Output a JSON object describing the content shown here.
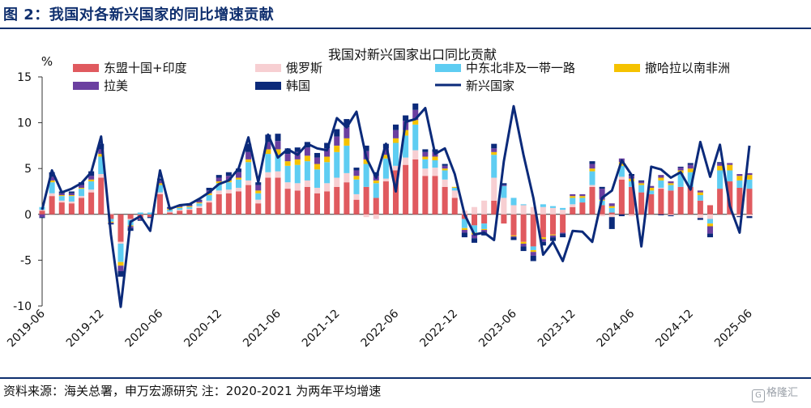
{
  "figure_title": "图 2：我国对各新兴国家的同比增速贡献",
  "source_note": "资料来源：海关总署，申万宏源研究  注：2020-2021 为两年平均增速",
  "watermark": "格隆汇",
  "chart_data": {
    "type": "bar",
    "stacked": true,
    "title": "我国对新兴国家出口同比贡献",
    "ylabel": "%",
    "ylim": [
      -10,
      15
    ],
    "yticks": [
      -10,
      -5,
      0,
      5,
      10,
      15
    ],
    "grid": false,
    "legend_position": "top",
    "x_tick_labels": [
      "2019-06",
      "2019-12",
      "2020-06",
      "2020-12",
      "2021-06",
      "2021-12",
      "2022-06",
      "2022-12",
      "2023-06",
      "2023-12",
      "2024-06",
      "2024-12",
      "2025-06"
    ],
    "categories": [
      "2019-06",
      "2019-07",
      "2019-08",
      "2019-09",
      "2019-10",
      "2019-11",
      "2019-12",
      "2020-01",
      "2020-02",
      "2020-03",
      "2020-04",
      "2020-05",
      "2020-06",
      "2020-07",
      "2020-08",
      "2020-09",
      "2020-10",
      "2020-11",
      "2020-12",
      "2021-01",
      "2021-02",
      "2021-03",
      "2021-04",
      "2021-05",
      "2021-06",
      "2021-07",
      "2021-08",
      "2021-09",
      "2021-10",
      "2021-11",
      "2021-12",
      "2022-01",
      "2022-02",
      "2022-03",
      "2022-04",
      "2022-05",
      "2022-06",
      "2022-07",
      "2022-08",
      "2022-09",
      "2022-10",
      "2022-11",
      "2022-12",
      "2023-01",
      "2023-02",
      "2023-03",
      "2023-04",
      "2023-05",
      "2023-06",
      "2023-07",
      "2023-08",
      "2023-09",
      "2023-10",
      "2023-11",
      "2023-12",
      "2024-01",
      "2024-02",
      "2024-03",
      "2024-04",
      "2024-05",
      "2024-06",
      "2024-07",
      "2024-08",
      "2024-09",
      "2024-10",
      "2024-11",
      "2024-12",
      "2025-01",
      "2025-02",
      "2025-03",
      "2025-04",
      "2025-05",
      "2025-06"
    ],
    "series": [
      {
        "name": "东盟十国+印度",
        "color": "#e05a5f",
        "values": [
          0.4,
          2.0,
          1.3,
          1.2,
          1.8,
          2.4,
          4.0,
          -0.5,
          -3.0,
          -0.5,
          -0.5,
          -0.3,
          2.2,
          0.2,
          0.4,
          0.5,
          0.7,
          1.3,
          2.2,
          2.3,
          2.5,
          3.2,
          1.2,
          4.0,
          4.0,
          2.8,
          2.6,
          3.0,
          2.3,
          2.5,
          3.0,
          3.5,
          1.6,
          3.0,
          1.8,
          3.6,
          4.8,
          5.4,
          6.0,
          4.2,
          4.2,
          3.0,
          1.8,
          -0.5,
          -1.2,
          -1.0,
          1.5,
          -1.0,
          -2.3,
          -3.0,
          -3.5,
          -2.5,
          -2.2,
          -2.0,
          0.8,
          1.3,
          3.0,
          1.0,
          0.2,
          3.8,
          3.0,
          2.4,
          2.2,
          2.8,
          2.6,
          3.0,
          3.0,
          1.5,
          1.0,
          2.8,
          3.6,
          2.9,
          2.8
        ]
      },
      {
        "name": "俄罗斯",
        "color": "#f7cfd2",
        "values": [
          0.1,
          0.3,
          0.2,
          0.2,
          0.2,
          0.3,
          0.4,
          0.1,
          -0.2,
          -0.1,
          0.0,
          0.0,
          0.2,
          0.1,
          0.1,
          0.1,
          0.2,
          0.2,
          0.4,
          0.4,
          0.4,
          0.5,
          0.4,
          0.6,
          0.7,
          0.7,
          0.8,
          0.7,
          0.6,
          0.9,
          1.0,
          1.0,
          0.6,
          -0.3,
          -0.5,
          0.3,
          0.5,
          0.8,
          1.0,
          0.8,
          0.9,
          0.8,
          0.8,
          0.4,
          0.8,
          1.5,
          2.5,
          1.8,
          1.0,
          1.0,
          0.8,
          0.8,
          0.7,
          0.5,
          0.3,
          0.0,
          0.2,
          -0.2,
          -0.3,
          0.3,
          -0.2,
          0.0,
          0.0,
          0.1,
          -0.1,
          0.0,
          0.0,
          -0.4,
          -0.5,
          0.0,
          -0.1,
          -0.2,
          -0.2
        ]
      },
      {
        "name": "中东北非及一带一路",
        "color": "#5ecdf2",
        "values": [
          0.3,
          1.2,
          0.5,
          0.6,
          0.8,
          0.9,
          1.9,
          -0.3,
          -2.0,
          -0.6,
          0.2,
          0.2,
          0.8,
          0.2,
          0.2,
          0.2,
          0.3,
          0.6,
          0.8,
          0.8,
          0.9,
          2.0,
          0.7,
          2.0,
          1.8,
          1.8,
          2.0,
          2.1,
          2.0,
          2.3,
          2.8,
          3.0,
          1.6,
          2.5,
          1.6,
          2.2,
          2.5,
          2.4,
          2.8,
          1.0,
          0.8,
          1.0,
          0.3,
          -1.0,
          -0.8,
          -0.6,
          2.5,
          1.3,
          0.8,
          0.1,
          -0.4,
          0.3,
          0.2,
          0.2,
          0.7,
          0.5,
          1.5,
          0.5,
          0.5,
          1.2,
          0.6,
          0.8,
          0.4,
          0.8,
          0.6,
          1.5,
          1.6,
          0.6,
          -0.5,
          2.0,
          1.2,
          0.8,
          1.0
        ]
      },
      {
        "name": "撤哈拉以南非洲",
        "color": "#f5c200",
        "values": [
          0.0,
          0.2,
          0.1,
          0.1,
          0.1,
          0.2,
          0.3,
          -0.1,
          -0.4,
          -0.1,
          0.0,
          0.0,
          0.2,
          0.1,
          0.1,
          0.1,
          0.1,
          0.2,
          0.2,
          0.2,
          0.2,
          0.3,
          0.3,
          0.5,
          0.6,
          0.5,
          0.6,
          0.6,
          0.6,
          0.6,
          0.7,
          0.8,
          0.4,
          0.5,
          0.3,
          0.4,
          0.5,
          0.6,
          0.5,
          0.3,
          0.4,
          0.2,
          0.1,
          -0.2,
          -0.2,
          -0.1,
          0.3,
          0.0,
          -0.1,
          -0.2,
          -0.2,
          -0.2,
          -0.1,
          0.0,
          0.2,
          0.2,
          0.3,
          0.1,
          0.2,
          0.4,
          0.3,
          0.2,
          0.3,
          0.3,
          0.2,
          0.3,
          0.4,
          0.3,
          -0.3,
          0.5,
          0.6,
          0.5,
          0.5
        ]
      },
      {
        "name": "拉美",
        "color": "#6b3fa0",
        "values": [
          -0.3,
          0.4,
          0.2,
          0.2,
          0.3,
          0.4,
          0.5,
          -0.1,
          -0.6,
          -0.2,
          -0.1,
          0.0,
          0.3,
          0.1,
          0.1,
          0.1,
          0.2,
          0.3,
          0.4,
          0.5,
          0.6,
          0.8,
          0.6,
          0.8,
          0.9,
          0.8,
          0.8,
          0.9,
          0.7,
          0.9,
          1.0,
          1.2,
          0.6,
          0.9,
          0.5,
          0.7,
          0.9,
          1.0,
          1.1,
          0.5,
          0.5,
          0.3,
          0.0,
          -0.3,
          -0.4,
          -0.3,
          0.4,
          0.1,
          -0.1,
          -0.3,
          -0.4,
          -0.3,
          -0.2,
          -0.1,
          0.2,
          0.2,
          0.5,
          1.2,
          0.3,
          0.4,
          0.3,
          0.2,
          0.2,
          0.3,
          0.2,
          0.3,
          0.4,
          0.2,
          -0.8,
          0.3,
          0.2,
          0.2,
          0.2
        ]
      },
      {
        "name": "韩国",
        "color": "#0b2a7a",
        "values": [
          -0.1,
          0.5,
          0.2,
          0.2,
          0.3,
          0.5,
          0.6,
          -0.1,
          -0.6,
          -0.3,
          -0.1,
          -0.1,
          0.2,
          0.1,
          0.1,
          0.1,
          0.1,
          0.3,
          0.3,
          0.4,
          0.4,
          0.9,
          0.3,
          0.8,
          0.8,
          0.6,
          0.5,
          0.6,
          0.5,
          0.6,
          0.8,
          0.9,
          0.3,
          0.6,
          0.4,
          0.5,
          0.6,
          0.6,
          0.7,
          0.3,
          0.3,
          0.2,
          0.0,
          -0.5,
          -0.5,
          -0.3,
          0.5,
          0.2,
          -0.3,
          -0.5,
          -0.6,
          -0.4,
          -0.4,
          -0.4,
          0.0,
          0.0,
          0.3,
          0.2,
          -1.3,
          -0.2,
          0.2,
          0.1,
          0.0,
          -0.1,
          -0.1,
          0.1,
          0.2,
          -0.2,
          -0.4,
          0.1,
          0.0,
          -0.1,
          -0.2
        ]
      }
    ],
    "line_series": {
      "name": "新兴国家",
      "color": "#0b2a7a",
      "values": [
        0.5,
        4.8,
        2.4,
        2.8,
        3.4,
        4.6,
        8.5,
        -2.2,
        -10.1,
        -0.8,
        -0.2,
        -1.8,
        4.8,
        0.6,
        1.0,
        1.1,
        1.7,
        2.4,
        3.3,
        3.7,
        5.0,
        8.4,
        3.5,
        8.7,
        6.2,
        7.1,
        6.5,
        7.7,
        7.2,
        7.0,
        10.5,
        9.5,
        11.2,
        6.2,
        4.0,
        7.7,
        2.5,
        10.1,
        10.4,
        11.6,
        6.6,
        7.2,
        4.4,
        0.0,
        -2.2,
        -2.0,
        -2.8,
        5.8,
        11.8,
        6.5,
        1.8,
        -4.4,
        -3.0,
        -5.1,
        -1.8,
        -1.9,
        -3.0,
        1.8,
        2.6,
        5.9,
        4.3,
        -3.5,
        5.2,
        4.9,
        4.0,
        4.6,
        2.7,
        7.9,
        4.1,
        7.6,
        0.9,
        -2.0,
        7.5
      ]
    }
  }
}
